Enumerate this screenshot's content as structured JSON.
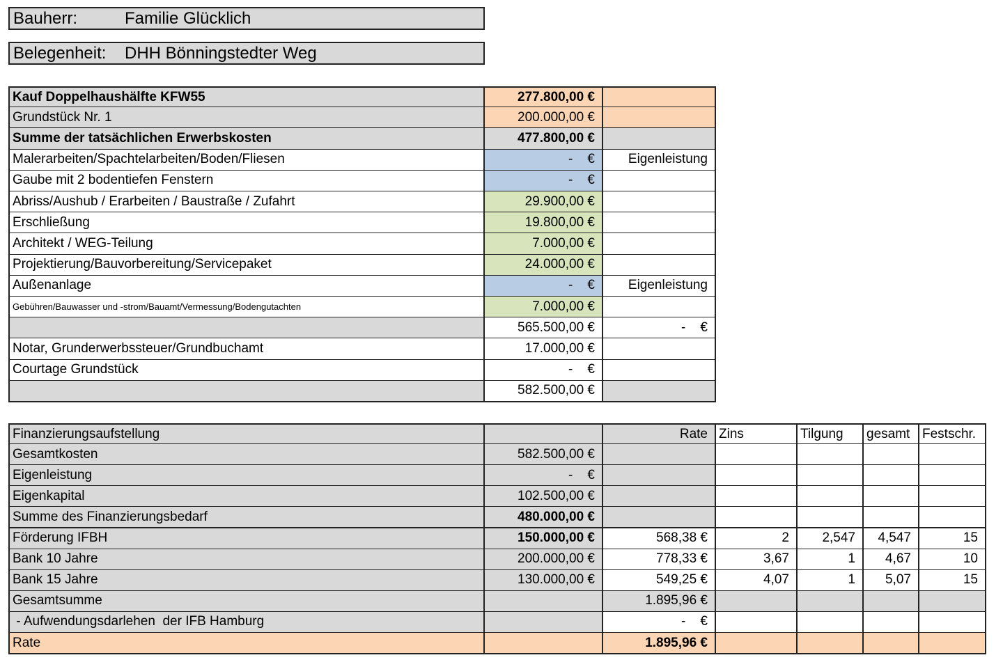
{
  "header": {
    "owner_label": "Bauherr:",
    "owner": "Familie Glücklich",
    "location_label": "Belegenheit:",
    "location": "DHH Bönningstedter Weg"
  },
  "costs": {
    "rows": [
      {
        "item": "Kauf Doppelhaushälfte KFW55",
        "amount": "277.800,00 €"
      },
      {
        "item": "Grundstück Nr. 1",
        "amount": "200.000,00 €"
      },
      {
        "item": "Summe der tatsächlichen Erwerbskosten",
        "amount": "477.800,00 €"
      },
      {
        "item": "Malerarbeiten/Spachtelarbeiten/Boden/Fliesen",
        "amount": "-    €",
        "note": "Eigenleistung"
      },
      {
        "item": "Gaube mit 2 bodentiefen Fenstern",
        "amount": "-    €"
      },
      {
        "item": "Abriss/Aushub / Erarbeiten / Baustraße / Zufahrt",
        "amount": "29.900,00 €"
      },
      {
        "item": "Erschließung",
        "amount": "19.800,00 €"
      },
      {
        "item": "Architekt / WEG-Teilung",
        "amount": "7.000,00 €"
      },
      {
        "item": "Projektierung/Bauvorbereitung/Servicepaket",
        "amount": "24.000,00 €"
      },
      {
        "item": "Außenanlage",
        "amount": "-    €",
        "note": "Eigenleistung"
      },
      {
        "item": "Gebühren/Bauwasser und -strom/Bauamt/Vermessung/Bodengutachten",
        "amount": "7.000,00 €"
      },
      {
        "amount": "565.500,00 €",
        "note": "-    €"
      },
      {
        "item": "Notar, Grunderwerbssteuer/Grundbuchamt",
        "amount": "17.000,00 €"
      },
      {
        "item": "Courtage Grundstück",
        "amount": "-    €"
      },
      {
        "amount": "582.500,00 €"
      }
    ]
  },
  "finance": {
    "header": {
      "item": "Finanzierungsaufstellung",
      "rate": "Rate",
      "zins": "Zins",
      "tilgung": "Tilgung",
      "gesamt": "gesamt",
      "festschr": "Festschr."
    },
    "rows": [
      {
        "item": "Gesamtkosten",
        "amount": "582.500,00 €"
      },
      {
        "item": "Eigenleistung",
        "amount": "-    €"
      },
      {
        "item": "Eigenkapital",
        "amount": "102.500,00 €"
      },
      {
        "item": "Summe des Finanzierungsbedarf",
        "amount": "480.000,00 €"
      },
      {
        "item": "Förderung IFBH",
        "amount": "150.000,00 €",
        "rate": "568,38 €",
        "zins": "2",
        "tilgung": "2,547",
        "gesamt": "4,547",
        "festschr": "15"
      },
      {
        "item": "Bank 10 Jahre",
        "amount": "200.000,00 €",
        "rate": "778,33 €",
        "zins": "3,67",
        "tilgung": "1",
        "gesamt": "4,67",
        "festschr": "10"
      },
      {
        "item": "Bank 15 Jahre",
        "amount": "130.000,00 €",
        "rate": "549,25 €",
        "zins": "4,07",
        "tilgung": "1",
        "gesamt": "5,07",
        "festschr": "15"
      },
      {
        "item": "Gesamtsumme",
        "rate": "1.895,96 €"
      },
      {
        "item": " - Aufwendungsdarlehen  der IFB Hamburg",
        "rate": "-    €"
      },
      {
        "item": "Rate",
        "rate": "1.895,96 €"
      }
    ]
  }
}
